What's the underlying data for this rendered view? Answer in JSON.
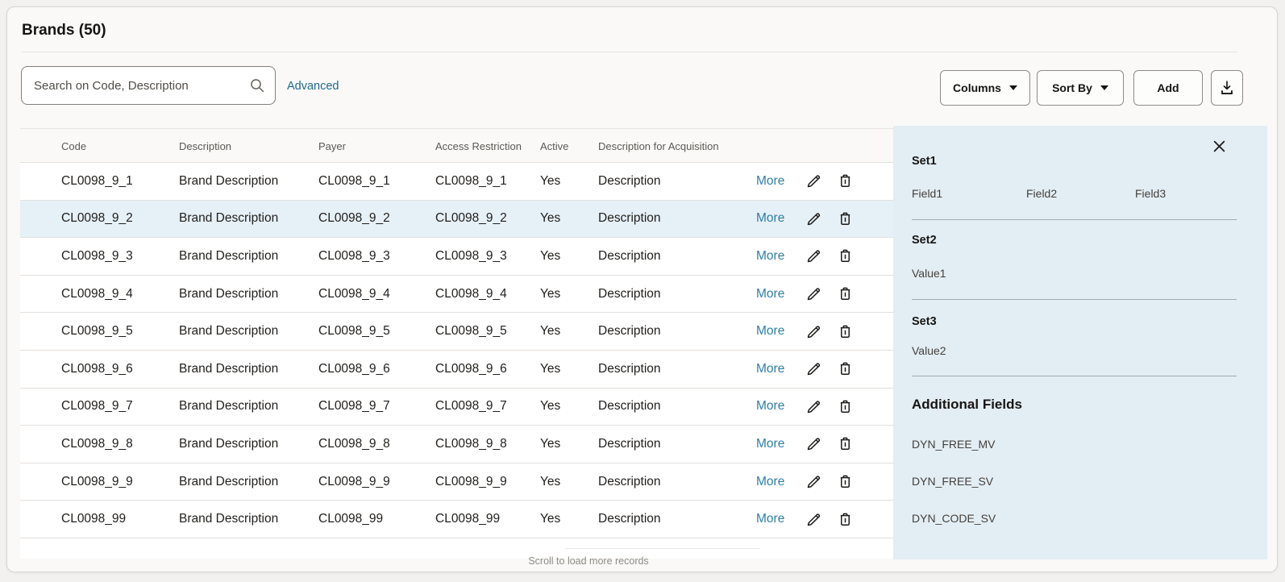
{
  "header": {
    "title": "Brands (50)"
  },
  "toolbar": {
    "search_placeholder": "Search on Code, Description",
    "advanced_label": "Advanced",
    "columns_label": "Columns",
    "sort_by_label": "Sort By",
    "add_label": "Add",
    "download_icon": "download-icon"
  },
  "table": {
    "columns": [
      "Code",
      "Description",
      "Payer",
      "Access Restriction",
      "Active",
      "Description for Acquisition"
    ],
    "more_label": "More",
    "row_icons": [
      "pencil-icon",
      "trash-icon"
    ],
    "rows": [
      {
        "code": "CL0098_9_1",
        "description": "Brand Description",
        "payer": "CL0098_9_1",
        "access_restriction": "CL0098_9_1",
        "active": "Yes",
        "description_for_acquisition": "Description",
        "selected": false
      },
      {
        "code": "CL0098_9_2",
        "description": "Brand Description",
        "payer": "CL0098_9_2",
        "access_restriction": "CL0098_9_2",
        "active": "Yes",
        "description_for_acquisition": "Description",
        "selected": true
      },
      {
        "code": "CL0098_9_3",
        "description": "Brand Description",
        "payer": "CL0098_9_3",
        "access_restriction": "CL0098_9_3",
        "active": "Yes",
        "description_for_acquisition": "Description",
        "selected": false
      },
      {
        "code": "CL0098_9_4",
        "description": "Brand Description",
        "payer": "CL0098_9_4",
        "access_restriction": "CL0098_9_4",
        "active": "Yes",
        "description_for_acquisition": "Description",
        "selected": false
      },
      {
        "code": "CL0098_9_5",
        "description": "Brand Description",
        "payer": "CL0098_9_5",
        "access_restriction": "CL0098_9_5",
        "active": "Yes",
        "description_for_acquisition": "Description",
        "selected": false
      },
      {
        "code": "CL0098_9_6",
        "description": "Brand Description",
        "payer": "CL0098_9_6",
        "access_restriction": "CL0098_9_6",
        "active": "Yes",
        "description_for_acquisition": "Description",
        "selected": false
      },
      {
        "code": "CL0098_9_7",
        "description": "Brand Description",
        "payer": "CL0098_9_7",
        "access_restriction": "CL0098_9_7",
        "active": "Yes",
        "description_for_acquisition": "Description",
        "selected": false
      },
      {
        "code": "CL0098_9_8",
        "description": "Brand Description",
        "payer": "CL0098_9_8",
        "access_restriction": "CL0098_9_8",
        "active": "Yes",
        "description_for_acquisition": "Description",
        "selected": false
      },
      {
        "code": "CL0098_9_9",
        "description": "Brand Description",
        "payer": "CL0098_9_9",
        "access_restriction": "CL0098_9_9",
        "active": "Yes",
        "description_for_acquisition": "Description",
        "selected": false
      },
      {
        "code": "CL0098_99",
        "description": "Brand Description",
        "payer": "CL0098_99",
        "access_restriction": "CL0098_99",
        "active": "Yes",
        "description_for_acquisition": "Description",
        "selected": false
      }
    ],
    "footer_hint": "Scroll to load more records"
  },
  "detail_panel": {
    "close_icon": "close-icon",
    "sections": [
      {
        "title": "Set1",
        "fields": [
          "Field1",
          "Field2",
          "Field3"
        ]
      },
      {
        "title": "Set2",
        "fields": [
          "Value1"
        ]
      },
      {
        "title": "Set3",
        "fields": [
          "Value2"
        ]
      }
    ],
    "additional_fields": {
      "title": "Additional Fields",
      "items": [
        "DYN_FREE_MV",
        "DYN_FREE_SV",
        "DYN_CODE_SV"
      ]
    }
  },
  "colors": {
    "card_background": "#faf9f7",
    "panel_background": "#e3edf4",
    "selected_row_background": "#e6f0f7",
    "link_advanced": "#1d6a8e",
    "link_more": "#2e7ea6",
    "body_text": "#201e1b",
    "header_text": "#5d5955",
    "hint_text": "#8f8b86"
  }
}
